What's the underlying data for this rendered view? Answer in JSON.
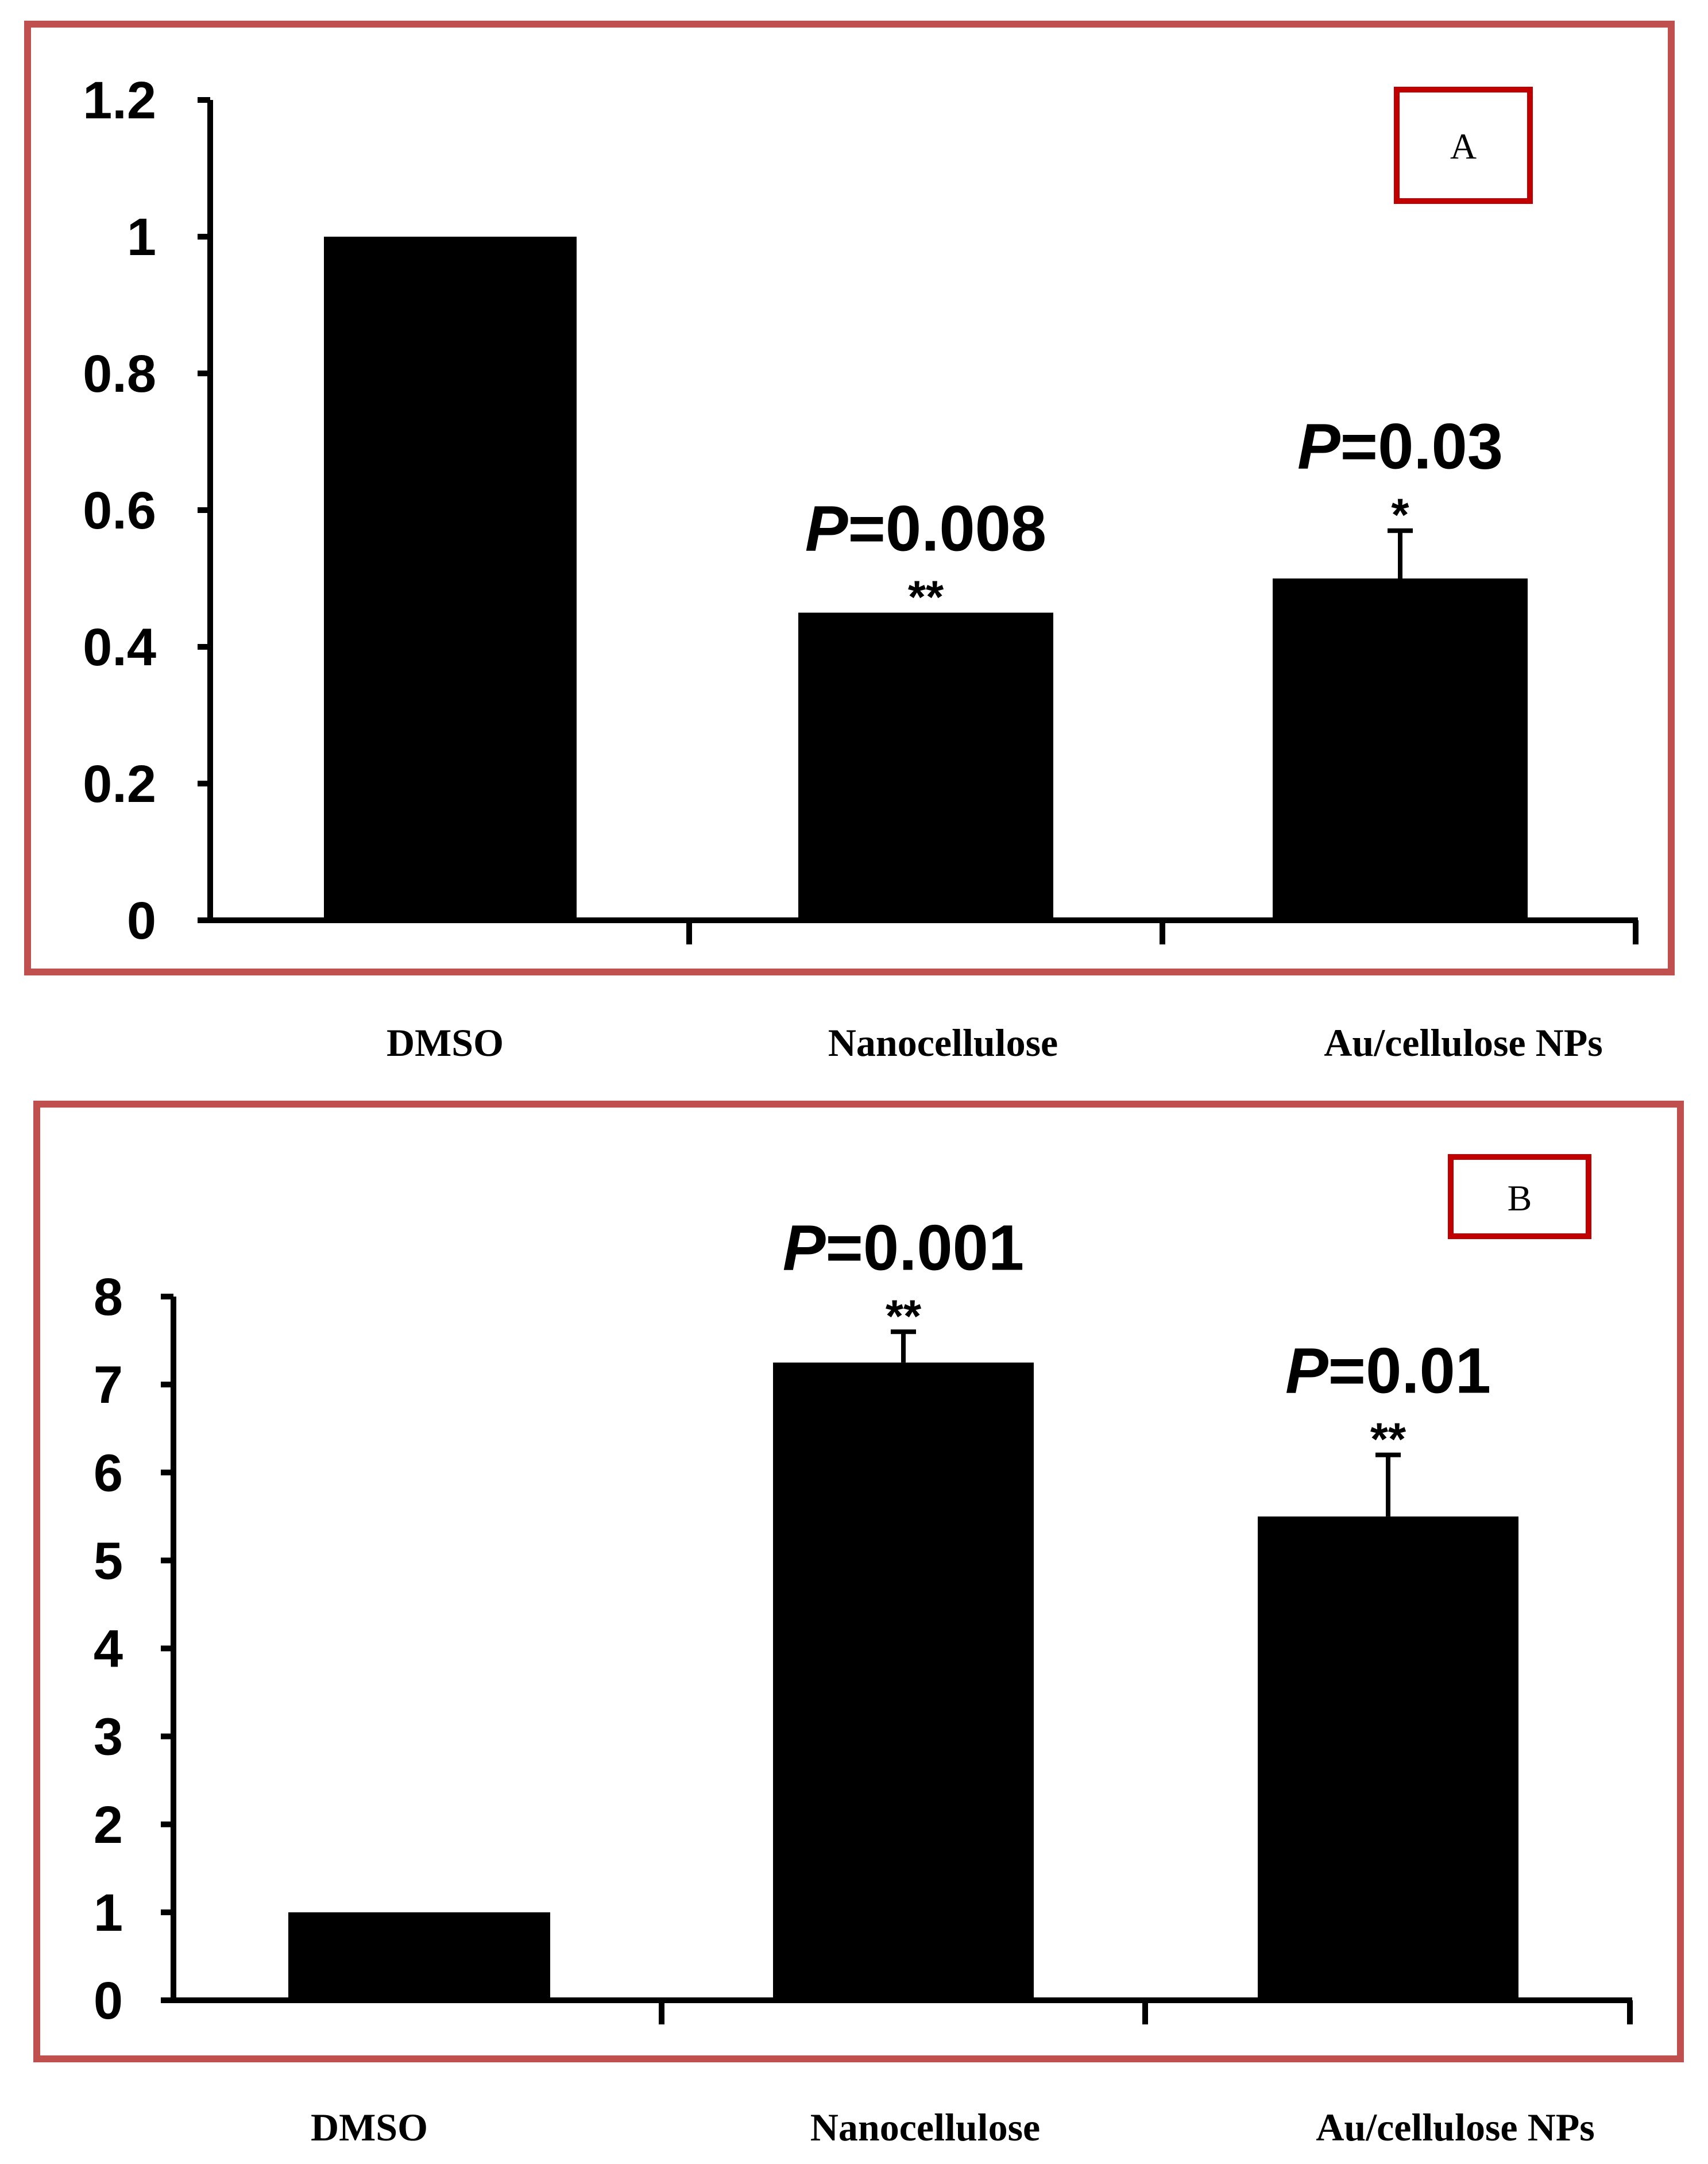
{
  "chart_data": [
    {
      "type": "bar",
      "panel_label": "A",
      "categories": [
        "DMSO",
        "Nanocellulose",
        "Au/cellulose NPs"
      ],
      "values": [
        1.0,
        0.45,
        0.5
      ],
      "error_upper": [
        null,
        null,
        0.57
      ],
      "annotations": [
        null,
        {
          "p_symbol": "P",
          "p_value": "=0.008",
          "stars": "**"
        },
        {
          "p_symbol": "P",
          "p_value": "=0.03",
          "stars": "*"
        }
      ],
      "yticks": [
        "0",
        "0.2",
        "0.4",
        "0.6",
        "0.8",
        "1",
        "1.2"
      ],
      "ylim": [
        0,
        1.2
      ],
      "title": "",
      "xlabel": "",
      "ylabel": "",
      "colors": {
        "bar": "#000000",
        "frame": "#c0504d",
        "label_box": "#c00000"
      }
    },
    {
      "type": "bar",
      "panel_label": "B",
      "categories": [
        "DMSO",
        "Nanocellulose",
        "Au/cellulose NPs"
      ],
      "values": [
        1.0,
        7.25,
        5.5
      ],
      "error_upper": [
        null,
        7.6,
        6.2
      ],
      "annotations": [
        null,
        {
          "p_symbol": "P",
          "p_value": "=0.001",
          "stars": "**"
        },
        {
          "p_symbol": "P",
          "p_value": "=0.01",
          "stars": "**"
        }
      ],
      "yticks": [
        "0",
        "1",
        "2",
        "3",
        "4",
        "5",
        "6",
        "7",
        "8"
      ],
      "ylim": [
        0,
        8
      ],
      "title": "",
      "xlabel": "",
      "ylabel": "",
      "colors": {
        "bar": "#000000",
        "frame": "#c0504d",
        "label_box": "#c00000"
      }
    }
  ]
}
